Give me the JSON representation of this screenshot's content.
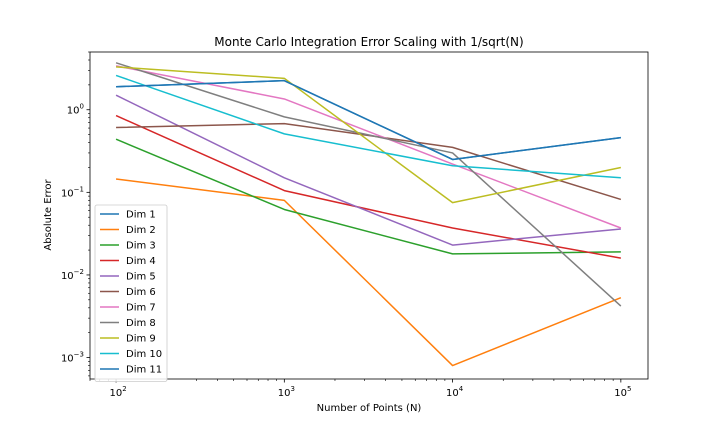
{
  "chart_data": {
    "type": "line",
    "title": "Monte Carlo Integration Error Scaling with 1/sqrt(N)",
    "xlabel": "Number of Points (N)",
    "ylabel": "Absolute Error",
    "xscale": "log",
    "yscale": "log",
    "x": [
      100,
      1000,
      10000,
      100000
    ],
    "xlim": [
      70,
      145000
    ],
    "ylim": [
      0.00055,
      5.0
    ],
    "x_ticks": [
      100,
      1000,
      10000,
      100000
    ],
    "x_tick_labels": [
      {
        "base": "10",
        "exp": "2"
      },
      {
        "base": "10",
        "exp": "3"
      },
      {
        "base": "10",
        "exp": "4"
      },
      {
        "base": "10",
        "exp": "5"
      }
    ],
    "y_ticks": [
      0.001,
      0.01,
      0.1,
      1
    ],
    "y_tick_labels": [
      {
        "base": "10",
        "exp": "−3"
      },
      {
        "base": "10",
        "exp": "−2"
      },
      {
        "base": "10",
        "exp": "−1"
      },
      {
        "base": "10",
        "exp": "0"
      }
    ],
    "grid": false,
    "legend_position": "lower-left",
    "series": [
      {
        "name": "Dim 1",
        "color": "#1f77b4",
        "values": [
          1.9,
          2.25,
          0.25,
          0.46
        ]
      },
      {
        "name": "Dim 2",
        "color": "#ff7f0e",
        "values": [
          0.145,
          0.08,
          0.0008,
          0.0053
        ]
      },
      {
        "name": "Dim 3",
        "color": "#2ca02c",
        "values": [
          0.44,
          0.062,
          0.018,
          0.019
        ]
      },
      {
        "name": "Dim 4",
        "color": "#d62728",
        "values": [
          0.85,
          0.105,
          0.037,
          0.016
        ]
      },
      {
        "name": "Dim 5",
        "color": "#9467bd",
        "values": [
          1.5,
          0.15,
          0.023,
          0.036
        ]
      },
      {
        "name": "Dim 6",
        "color": "#8c564b",
        "values": [
          0.61,
          0.68,
          0.35,
          0.082
        ]
      },
      {
        "name": "Dim 7",
        "color": "#e377c2",
        "values": [
          3.4,
          1.35,
          0.22,
          0.037
        ]
      },
      {
        "name": "Dim 8",
        "color": "#7f7f7f",
        "values": [
          3.7,
          0.82,
          0.3,
          0.0042
        ]
      },
      {
        "name": "Dim 9",
        "color": "#bcbd22",
        "values": [
          3.3,
          2.4,
          0.075,
          0.2
        ]
      },
      {
        "name": "Dim 10",
        "color": "#17becf",
        "values": [
          2.6,
          0.51,
          0.21,
          0.15
        ]
      },
      {
        "name": "Dim 11",
        "color": "#1f77b4",
        "values": [
          1.9,
          2.25,
          0.25,
          0.46
        ]
      }
    ]
  }
}
